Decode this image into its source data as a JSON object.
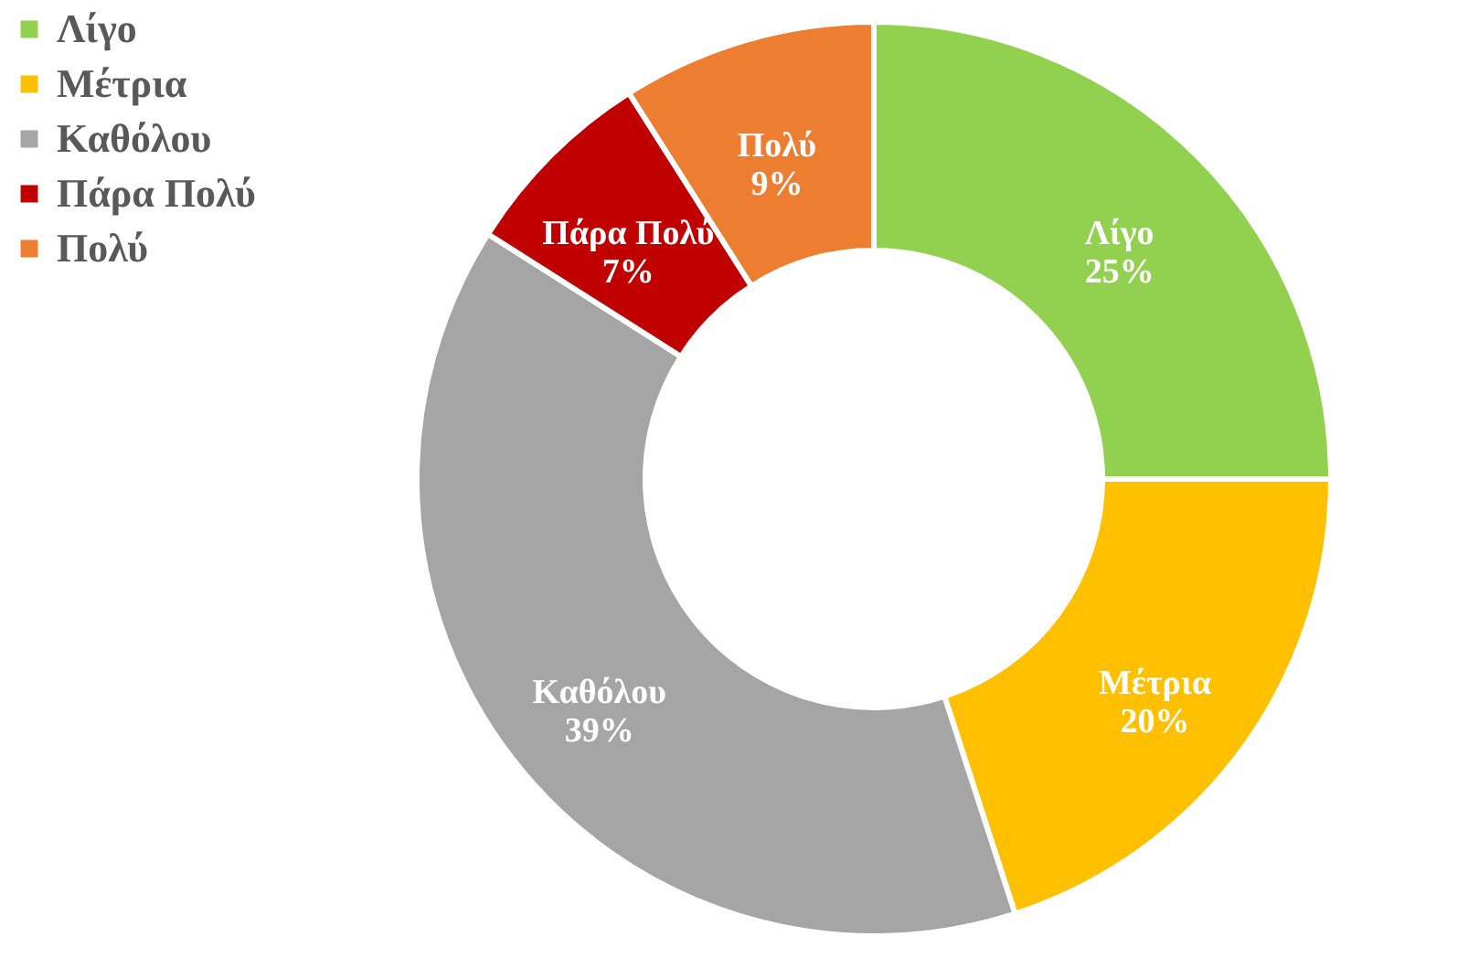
{
  "chart_data": {
    "type": "donut",
    "categories": [
      "Λίγο",
      "Μέτρια",
      "Καθόλου",
      "Πάρα Πολύ",
      "Πολύ"
    ],
    "values": [
      25,
      20,
      39,
      7,
      9
    ],
    "colors": [
      "#92d050",
      "#ffc000",
      "#a5a5a5",
      "#c00000",
      "#ed7d31"
    ],
    "value_labels": [
      "25%",
      "20%",
      "39%",
      "7%",
      "9%"
    ],
    "legend": "left"
  }
}
